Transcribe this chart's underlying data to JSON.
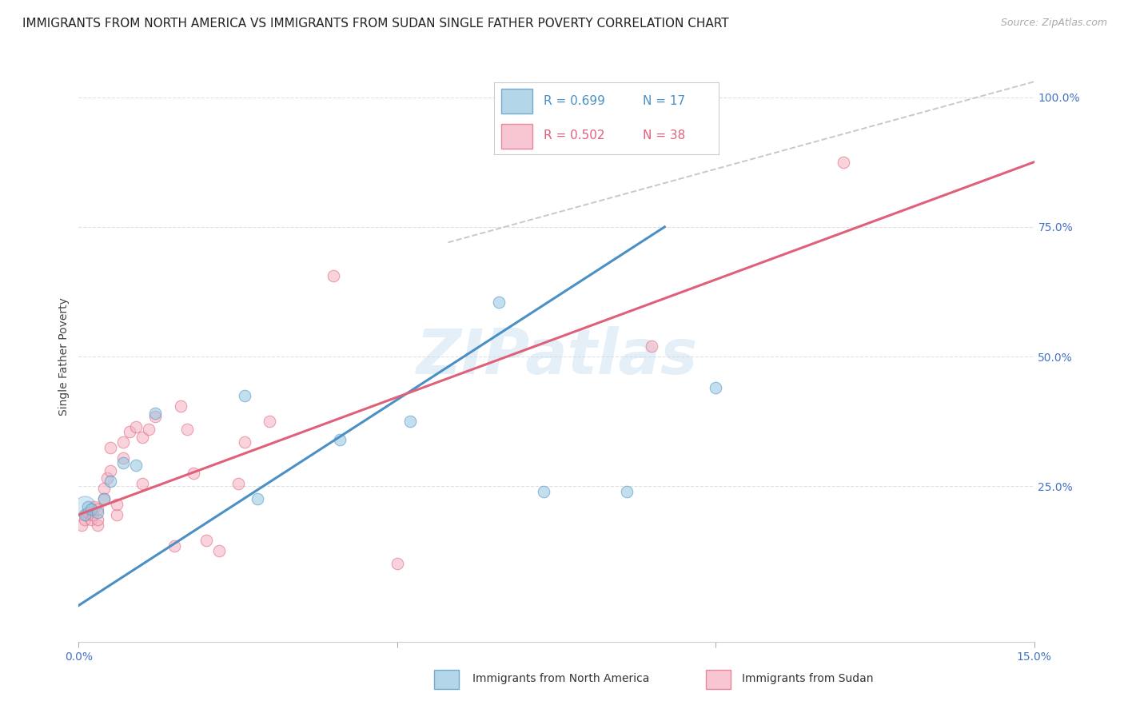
{
  "title": "IMMIGRANTS FROM NORTH AMERICA VS IMMIGRANTS FROM SUDAN SINGLE FATHER POVERTY CORRELATION CHART",
  "source": "Source: ZipAtlas.com",
  "ylabel": "Single Father Poverty",
  "legend_label1": "Immigrants from North America",
  "legend_label2": "Immigrants from Sudan",
  "xlim": [
    0.0,
    0.15
  ],
  "ylim": [
    -0.05,
    1.05
  ],
  "color_blue": "#93c6e0",
  "color_pink": "#f4afc0",
  "color_blue_line": "#4a90c4",
  "color_pink_line": "#e0607a",
  "color_ref_line": "#bbbbbb",
  "watermark": "ZIPatlas",
  "blue_points_x": [
    0.001,
    0.0015,
    0.002,
    0.003,
    0.004,
    0.005,
    0.007,
    0.009,
    0.012,
    0.026,
    0.028,
    0.041,
    0.052,
    0.066,
    0.073,
    0.086,
    0.1
  ],
  "blue_points_y": [
    0.195,
    0.21,
    0.205,
    0.2,
    0.225,
    0.26,
    0.295,
    0.29,
    0.39,
    0.425,
    0.225,
    0.34,
    0.375,
    0.605,
    0.24,
    0.24,
    0.44
  ],
  "pink_points_x": [
    0.0005,
    0.001,
    0.0012,
    0.0015,
    0.002,
    0.0022,
    0.0025,
    0.003,
    0.003,
    0.003,
    0.004,
    0.004,
    0.0045,
    0.005,
    0.005,
    0.006,
    0.006,
    0.007,
    0.007,
    0.008,
    0.009,
    0.01,
    0.01,
    0.011,
    0.012,
    0.015,
    0.016,
    0.017,
    0.018,
    0.02,
    0.022,
    0.025,
    0.026,
    0.03,
    0.04,
    0.05,
    0.09,
    0.12
  ],
  "pink_points_y": [
    0.175,
    0.185,
    0.195,
    0.2,
    0.185,
    0.195,
    0.21,
    0.175,
    0.185,
    0.205,
    0.225,
    0.245,
    0.265,
    0.28,
    0.325,
    0.195,
    0.215,
    0.305,
    0.335,
    0.355,
    0.365,
    0.255,
    0.345,
    0.36,
    0.385,
    0.135,
    0.405,
    0.36,
    0.275,
    0.145,
    0.125,
    0.255,
    0.335,
    0.375,
    0.655,
    0.1,
    0.52,
    0.875
  ],
  "blue_line_x": [
    0.0,
    0.092
  ],
  "blue_line_y": [
    0.02,
    0.75
  ],
  "pink_line_x": [
    0.0,
    0.15
  ],
  "pink_line_y": [
    0.195,
    0.875
  ],
  "ref_line_x": [
    0.058,
    0.15
  ],
  "ref_line_y": [
    0.72,
    1.03
  ],
  "background_color": "#ffffff",
  "grid_color": "#dddddd",
  "title_fontsize": 11,
  "tick_fontsize": 10,
  "marker_size": 110,
  "marker_size_large": 380
}
